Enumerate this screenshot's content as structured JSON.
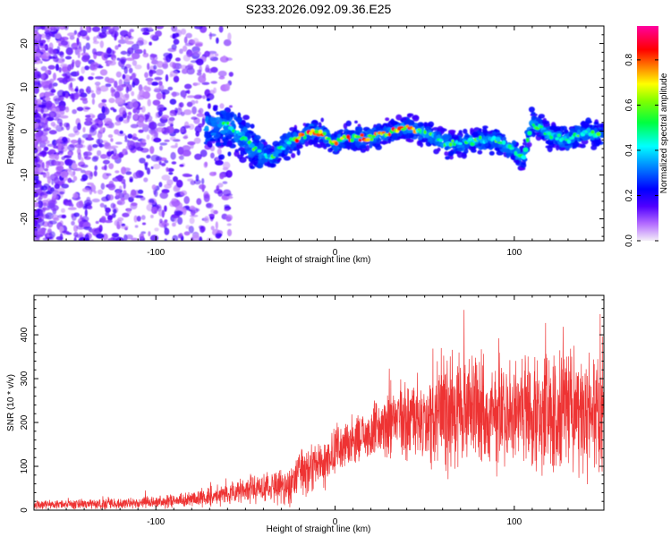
{
  "title": "S233.2026.092.09.36.E25",
  "chart_data": [
    {
      "type": "heatmap",
      "title": "S233.2026.092.09.36.E25",
      "xlabel": "Height of straight line (km)",
      "ylabel": "Frequency (Hz)",
      "xlim": [
        -168,
        150
      ],
      "ylim": [
        -25,
        24
      ],
      "xticks": [
        -100,
        0,
        100
      ],
      "xtick_labels": [
        "-100",
        "0",
        "100"
      ],
      "yticks": [
        -20,
        -10,
        0,
        10,
        20
      ],
      "ytick_labels": [
        "-20",
        "-10",
        "0",
        "10",
        "20"
      ],
      "ridge": {
        "x": [
          -60,
          -50,
          -42,
          -35,
          -28,
          -20,
          -12,
          -5,
          0,
          5,
          12,
          20,
          28,
          35,
          40,
          50,
          60,
          70,
          80,
          90,
          100,
          105,
          110,
          120,
          130,
          140,
          148
        ],
        "y": [
          1.5,
          -2,
          -5,
          -6,
          -3,
          -1.5,
          0,
          -1,
          -3,
          -1.5,
          -1.5,
          -1.5,
          -0.5,
          0.5,
          1,
          -0.5,
          -2.5,
          -3,
          -2,
          -2,
          -4.5,
          -6,
          2,
          -1,
          -2,
          0,
          -1
        ]
      },
      "colorbar": {
        "label": "Normalized spectral amplitude",
        "ticks": [
          0.0,
          0.2,
          0.4,
          0.6,
          0.8
        ],
        "tick_labels": [
          "0.0",
          "0.2",
          "0.4",
          "0.6",
          "0.8"
        ],
        "range": [
          0,
          0.95
        ],
        "colors": [
          "#f2eaf6",
          "#7a00e6",
          "#0000ff",
          "#00ffff",
          "#00ff00",
          "#ffff00",
          "#ff8000",
          "#ff0000",
          "#ff00ff"
        ]
      }
    },
    {
      "type": "line",
      "xlabel": "Height of straight line (km)",
      "ylabel": "SNR (10 * v/v)",
      "xlim": [
        -168,
        150
      ],
      "ylim": [
        0,
        490
      ],
      "xticks": [
        -100,
        0,
        100
      ],
      "xtick_labels": [
        "-100",
        "0",
        "100"
      ],
      "yticks": [
        0,
        100,
        200,
        300,
        400
      ],
      "ytick_labels": [
        "0",
        "100",
        "200",
        "300",
        "400"
      ],
      "color": "#ee3333",
      "envelope": {
        "x": [
          -168,
          -120,
          -100,
          -80,
          -60,
          -45,
          -35,
          -25,
          -20,
          -15,
          -5,
          0,
          10,
          20,
          30,
          40,
          50,
          55,
          60,
          80,
          100,
          120,
          140,
          150
        ],
        "mean": [
          12,
          15,
          18,
          25,
          35,
          50,
          55,
          50,
          90,
          95,
          110,
          140,
          155,
          180,
          195,
          205,
          210,
          200,
          230,
          225,
          220,
          225,
          220,
          225
        ],
        "spread": [
          10,
          12,
          14,
          18,
          25,
          35,
          35,
          40,
          60,
          55,
          55,
          55,
          60,
          70,
          75,
          80,
          90,
          110,
          140,
          130,
          125,
          130,
          140,
          140
        ]
      }
    }
  ]
}
